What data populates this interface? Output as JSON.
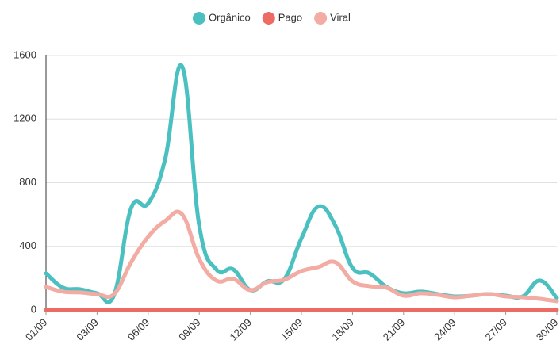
{
  "chart_data": {
    "type": "line",
    "categories": [
      "01/09",
      null,
      null,
      "03/09",
      null,
      null,
      "06/09",
      null,
      null,
      "09/09",
      null,
      null,
      "12/09",
      null,
      null,
      "15/09",
      null,
      null,
      "18/09",
      null,
      null,
      "21/09",
      null,
      null,
      "24/09",
      null,
      null,
      "27/09",
      null,
      null,
      "30/09"
    ],
    "series": [
      {
        "name": "Orgânico",
        "color": "#4bc0c0",
        "values": [
          230,
          140,
          130,
          105,
          95,
          640,
          670,
          950,
          1530,
          530,
          255,
          255,
          125,
          180,
          195,
          450,
          650,
          530,
          265,
          230,
          145,
          105,
          115,
          100,
          85,
          90,
          100,
          90,
          85,
          185,
          75
        ]
      },
      {
        "name": "Pago",
        "color": "#ec6b62",
        "values": [
          0,
          0,
          0,
          0,
          0,
          0,
          0,
          0,
          0,
          0,
          0,
          0,
          0,
          0,
          0,
          0,
          0,
          0,
          0,
          0,
          0,
          0,
          0,
          0,
          0,
          0,
          0,
          0,
          0,
          0,
          0
        ]
      },
      {
        "name": "Viral",
        "color": "#f2aca3",
        "values": [
          145,
          115,
          110,
          100,
          100,
          300,
          460,
          560,
          600,
          320,
          185,
          195,
          125,
          175,
          190,
          245,
          270,
          300,
          180,
          150,
          140,
          90,
          105,
          95,
          80,
          90,
          100,
          85,
          80,
          70,
          55
        ]
      }
    ],
    "ylim": [
      0,
      1600
    ],
    "yticks": [
      0,
      400,
      800,
      1200,
      1600
    ],
    "grid": true,
    "legend": "top"
  }
}
